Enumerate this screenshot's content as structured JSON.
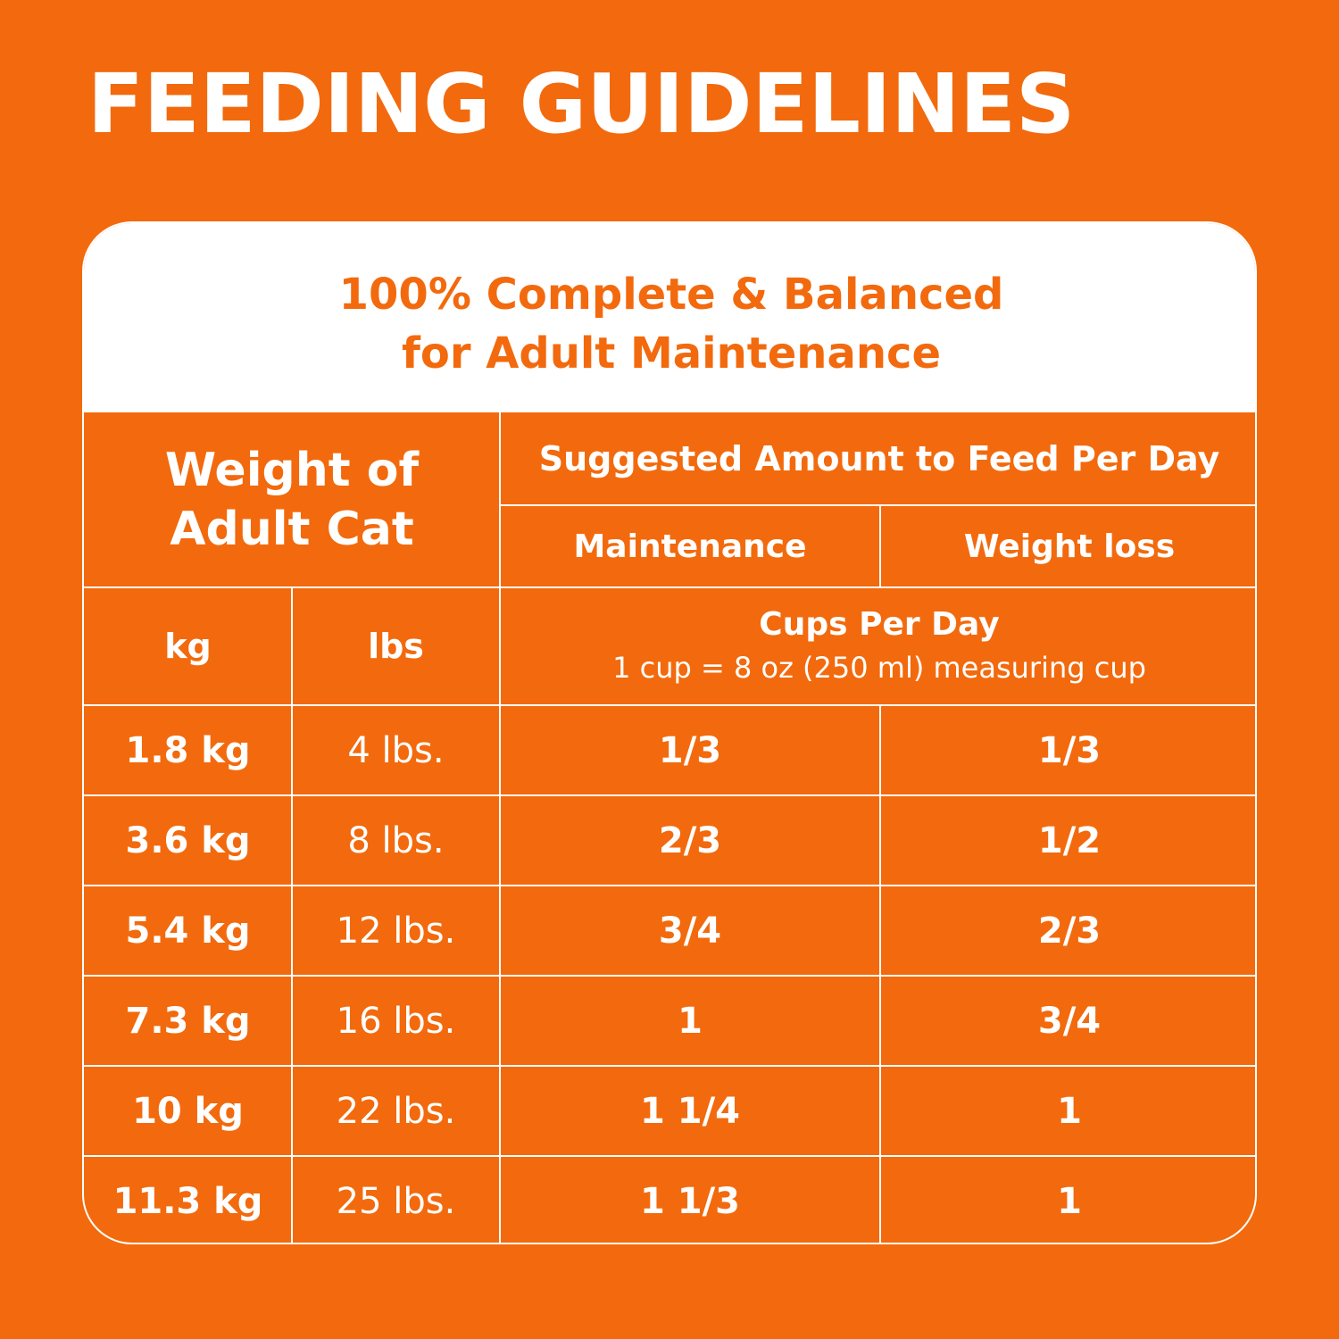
{
  "title": "FEEDING GUIDELINES",
  "card": {
    "header_line1": "100% Complete & Balanced",
    "header_line2": "for Adult Maintenance"
  },
  "table": {
    "weight_header_line1": "Weight of",
    "weight_header_line2": "Adult Cat",
    "amount_header": "Suggested Amount to Feed Per Day",
    "col_maintenance": "Maintenance",
    "col_weight_loss": "Weight loss",
    "col_kg": "kg",
    "col_lbs": "lbs",
    "cups_title": "Cups Per Day",
    "cups_note": "1 cup = 8 oz (250 ml) measuring cup",
    "rows": [
      {
        "kg": "1.8 kg",
        "lbs": "4 lbs.",
        "maintenance": "1/3",
        "weight_loss": "1/3"
      },
      {
        "kg": "3.6 kg",
        "lbs": "8 lbs.",
        "maintenance": "2/3",
        "weight_loss": "1/2"
      },
      {
        "kg": "5.4 kg",
        "lbs": "12 lbs.",
        "maintenance": "3/4",
        "weight_loss": "2/3"
      },
      {
        "kg": "7.3 kg",
        "lbs": "16 lbs.",
        "maintenance": "1",
        "weight_loss": "3/4"
      },
      {
        "kg": "10 kg",
        "lbs": "22 lbs.",
        "maintenance": "1 1/4",
        "weight_loss": "1"
      },
      {
        "kg": "11.3 kg",
        "lbs": "25 lbs.",
        "maintenance": "1 1/3",
        "weight_loss": "1"
      }
    ]
  },
  "colors": {
    "background": "#F26A0D",
    "text": "#FFFFFF"
  }
}
